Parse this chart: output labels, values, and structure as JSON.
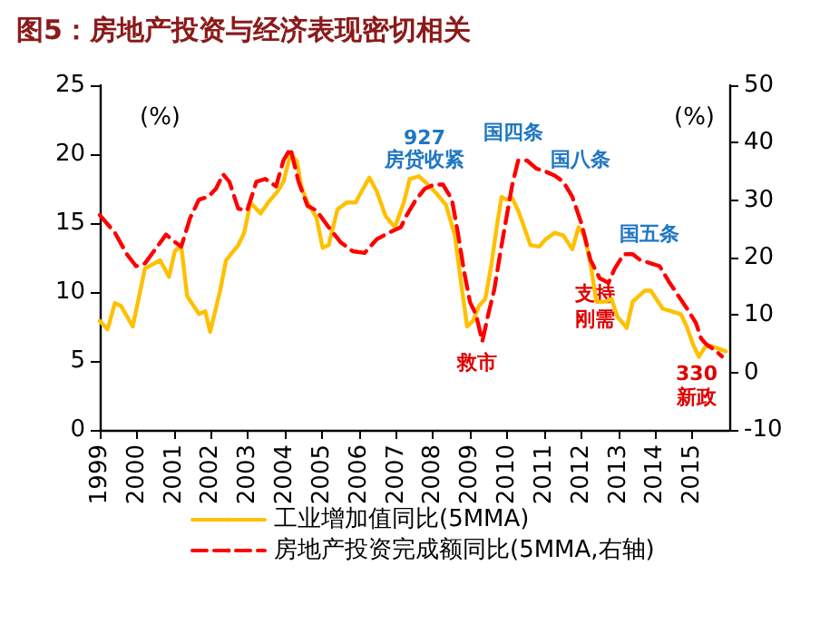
{
  "chart_data": {
    "type": "line",
    "title": "图5：房地产投资与经济表现密切相关",
    "ylabel": "(%)",
    "y2label": "(%)",
    "xlim": [
      1999,
      2016
    ],
    "xticks": [
      1999,
      2000,
      2001,
      2002,
      2003,
      2004,
      2005,
      2006,
      2007,
      2008,
      2009,
      2010,
      2011,
      2012,
      2013,
      2014,
      2015
    ],
    "ylim": [
      0,
      25
    ],
    "yticks": [
      0,
      5,
      10,
      15,
      20,
      25
    ],
    "y2lim": [
      -10,
      50
    ],
    "y2ticks": [
      -10,
      0,
      10,
      20,
      30,
      40,
      50
    ],
    "grid": false,
    "legend": "bottom",
    "marker": "none",
    "series": [
      {
        "name": "工业增加值同比(5MMA)",
        "color": "#ffc000",
        "line_style": "solid",
        "x": [
          1999.0,
          1999.21,
          1999.41,
          1999.57,
          1999.89,
          2000.22,
          2000.63,
          2000.87,
          2001.03,
          2001.2,
          2001.36,
          2001.68,
          2001.85,
          2001.98,
          2002.25,
          2002.41,
          2002.74,
          2002.9,
          2003.07,
          2003.34,
          2003.55,
          2003.8,
          2003.96,
          2004.15,
          2004.32,
          2004.45,
          2004.61,
          2004.85,
          2005.02,
          2005.18,
          2005.42,
          2005.67,
          2005.91,
          2006.07,
          2006.28,
          2006.48,
          2006.72,
          2006.97,
          2007.21,
          2007.37,
          2007.62,
          2007.86,
          2008.11,
          2008.35,
          2008.59,
          2008.76,
          2008.92,
          2009.08,
          2009.24,
          2009.41,
          2009.57,
          2009.73,
          2009.85,
          2009.98,
          2010.14,
          2010.3,
          2010.46,
          2010.63,
          2010.87,
          2011.03,
          2011.28,
          2011.52,
          2011.76,
          2011.93,
          2012.09,
          2012.25,
          2012.41,
          2012.66,
          2012.82,
          2012.98,
          2013.23,
          2013.39,
          2013.72,
          2013.88,
          2014.2,
          2014.45,
          2014.69,
          2014.85,
          2015.02,
          2015.18,
          2015.34,
          2015.5,
          2015.91
        ],
        "values": [
          7.9,
          7.3,
          9.2,
          9.0,
          7.5,
          11.7,
          12.3,
          11.1,
          13.0,
          13.3,
          9.7,
          8.4,
          8.6,
          7.1,
          10.1,
          12.3,
          13.4,
          14.3,
          16.5,
          15.7,
          16.5,
          17.3,
          18.0,
          20.0,
          19.5,
          17.6,
          16.5,
          15.4,
          13.2,
          13.4,
          16.0,
          16.5,
          16.5,
          17.3,
          18.3,
          17.3,
          15.5,
          14.7,
          16.5,
          18.2,
          18.4,
          17.8,
          17.1,
          16.3,
          14.1,
          10.6,
          7.5,
          7.9,
          9.0,
          9.5,
          11.9,
          14.9,
          16.9,
          16.7,
          16.8,
          15.9,
          14.7,
          13.4,
          13.3,
          13.8,
          14.3,
          14.1,
          13.1,
          14.7,
          14.1,
          12.1,
          9.3,
          9.3,
          9.5,
          8.2,
          7.4,
          9.3,
          10.1,
          10.1,
          8.8,
          8.6,
          8.4,
          7.5,
          6.2,
          5.3,
          6.0,
          6.1,
          5.7
        ]
      },
      {
        "name": "房地产投资完成额同比(5MMA,右轴)",
        "color": "#ff0000",
        "line_style": "dashed",
        "axis": "y2",
        "x": [
          1999.0,
          1999.41,
          1999.73,
          1999.98,
          2000.22,
          2000.46,
          2000.79,
          2001.03,
          2001.2,
          2001.44,
          2001.68,
          2001.93,
          2002.14,
          2002.33,
          2002.5,
          2002.74,
          2002.98,
          2003.23,
          2003.47,
          2003.76,
          2003.96,
          2004.15,
          2004.37,
          2004.61,
          2004.85,
          2005.18,
          2005.5,
          2005.83,
          2006.15,
          2006.48,
          2006.8,
          2007.13,
          2007.29,
          2007.54,
          2007.78,
          2008.02,
          2008.27,
          2008.51,
          2008.67,
          2008.84,
          2009.0,
          2009.16,
          2009.33,
          2009.49,
          2009.65,
          2009.81,
          2009.98,
          2010.14,
          2010.3,
          2010.54,
          2010.79,
          2011.03,
          2011.28,
          2011.52,
          2011.76,
          2012.01,
          2012.25,
          2012.5,
          2012.74,
          2012.9,
          2013.15,
          2013.39,
          2013.59,
          2013.88,
          2014.12,
          2014.36,
          2014.63,
          2014.85,
          2015.1,
          2015.24,
          2015.38,
          2015.63,
          2015.8
        ],
        "values": [
          27.4,
          24.3,
          20.6,
          18.5,
          19.0,
          21.1,
          24.0,
          22.7,
          21.9,
          26.9,
          30.1,
          30.6,
          32.0,
          34.5,
          33.2,
          28.5,
          28.2,
          33.2,
          33.7,
          32.4,
          36.9,
          39.0,
          33.2,
          29.0,
          28.2,
          25.3,
          22.7,
          21.1,
          20.8,
          23.2,
          24.3,
          25.3,
          27.4,
          30.1,
          32.0,
          32.7,
          32.7,
          30.1,
          24.3,
          17.5,
          12.2,
          10.1,
          5.4,
          10.1,
          14.3,
          20.6,
          26.9,
          32.7,
          36.9,
          36.9,
          35.5,
          35.0,
          34.3,
          33.2,
          30.6,
          25.9,
          19.6,
          16.4,
          15.6,
          18.0,
          20.6,
          20.6,
          19.6,
          19.0,
          18.5,
          15.9,
          13.3,
          11.2,
          8.6,
          5.9,
          4.9,
          3.8,
          2.8
        ]
      }
    ],
    "annotations": [
      "927",
      "房贷收紧",
      "国四条",
      "国八条",
      "国五条",
      "支持",
      "刚需",
      "救市",
      "330",
      "新政"
    ]
  }
}
